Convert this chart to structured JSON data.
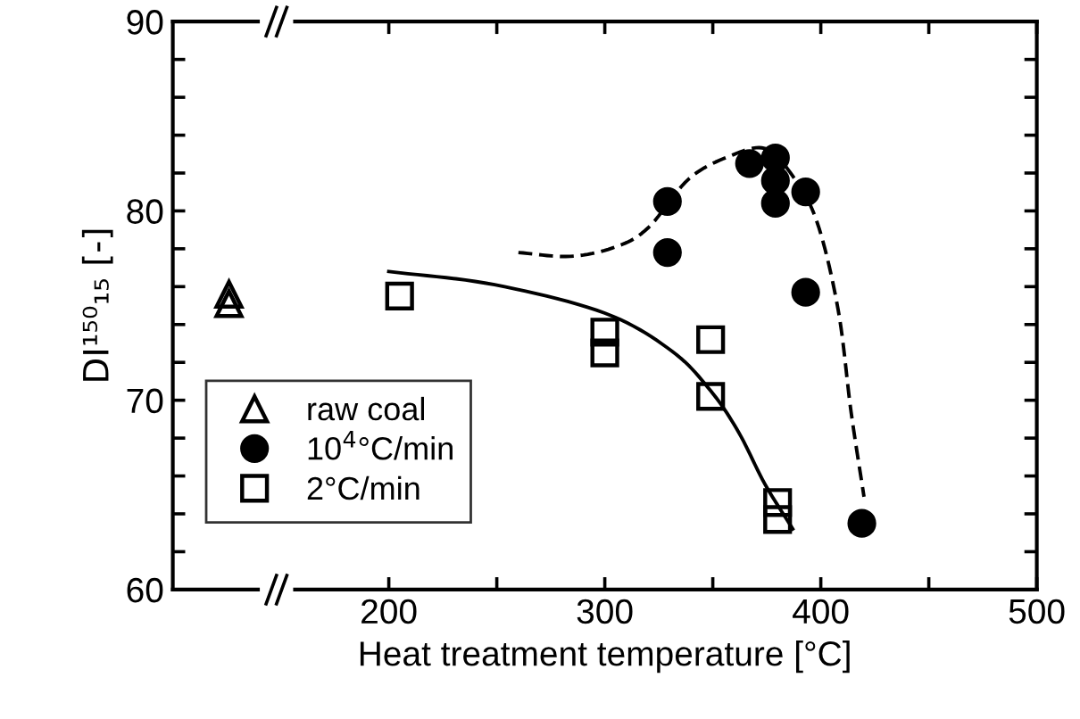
{
  "chart_data": {
    "type": "scatter",
    "xlabel": "Heat treatment temperature [°C]",
    "ylabel": "DI¹⁵⁰₁₅ [-]",
    "xlim": [
      100,
      500
    ],
    "xticks": [
      200,
      {
        "value": 250,
        "label": null
      },
      300,
      {
        "value": 350,
        "label": null
      },
      400,
      {
        "value": 450,
        "label": null
      },
      500
    ],
    "ylim": [
      60,
      90
    ],
    "yticks": [
      60,
      {
        "value": 62,
        "label": null
      },
      {
        "value": 64,
        "label": null
      },
      {
        "value": 66,
        "label": null
      },
      {
        "value": 68,
        "label": null
      },
      70,
      {
        "value": 72,
        "label": null
      },
      {
        "value": 74,
        "label": null
      },
      {
        "value": 76,
        "label": null
      },
      {
        "value": 78,
        "label": null
      },
      80,
      {
        "value": 82,
        "label": null
      },
      {
        "value": 84,
        "label": null
      },
      {
        "value": 86,
        "label": null
      },
      {
        "value": 88,
        "label": null
      },
      90
    ],
    "grid": false,
    "legend": "bottom left",
    "series": [
      {
        "name": "raw coal",
        "color": "#000000",
        "marker": "triangle",
        "x": [
          126,
          126
        ],
        "values": [
          75.6,
          75.1
        ]
      },
      {
        "name": "10$^{4}$°C/min",
        "color": "#000000",
        "marker": "circle",
        "x": [
          329,
          329,
          367,
          379,
          379,
          379,
          393,
          393,
          419
        ],
        "values": [
          80.5,
          77.8,
          82.5,
          82.8,
          81.6,
          80.4,
          81.0,
          75.7,
          63.5
        ]
      },
      {
        "name": "2°C/min",
        "color": "#000000",
        "marker": "square",
        "x": [
          205,
          300,
          300,
          349,
          349,
          380,
          380
        ],
        "values": [
          75.5,
          73.6,
          72.5,
          73.2,
          70.2,
          64.6,
          63.7
        ]
      },
      {
        "type": "line",
        "color": "#000000",
        "line_style": "solid",
        "marker": "none",
        "x": [
          200,
          249,
          300,
          331,
          349,
          362,
          374,
          387
        ],
        "values": [
          76.8,
          76.1,
          74.6,
          72.6,
          70.5,
          68.3,
          65.6,
          63.2
        ]
      },
      {
        "type": "line",
        "color": "#000000",
        "line_style": "dashed",
        "marker": "none",
        "x": [
          260,
          284,
          305,
          320,
          339,
          358,
          374,
          386,
          398,
          408,
          414,
          420
        ],
        "values": [
          77.8,
          77.6,
          78.1,
          79.1,
          81.7,
          82.9,
          83.3,
          82.0,
          79.5,
          74.8,
          69.4,
          64.9
        ]
      }
    ]
  }
}
